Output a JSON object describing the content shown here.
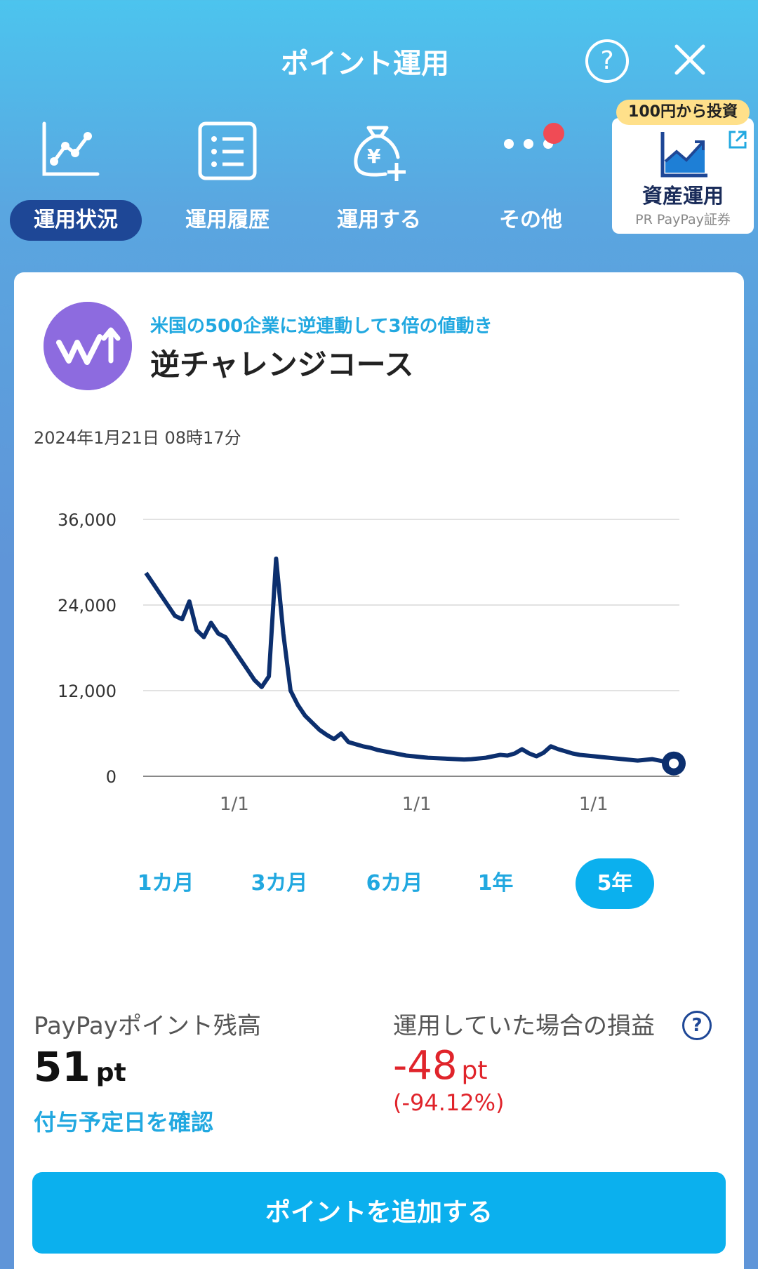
{
  "header": {
    "title": "ポイント運用",
    "help_label": "?"
  },
  "nav": [
    {
      "label": "運用状況",
      "active": true
    },
    {
      "label": "運用履歴"
    },
    {
      "label": "運用する"
    },
    {
      "label": "その他"
    }
  ],
  "promo": {
    "badge": "100円から投資",
    "title": "資産運用",
    "sub": "PR PayPay証券"
  },
  "course": {
    "subtitle": "米国の500企業に逆連動して3倍の値動き",
    "name": "逆チャレンジコース"
  },
  "timestamp": "2024年1月21日 08時17分",
  "chart_data": {
    "type": "line",
    "y_ticks": [
      "36,000",
      "24,000",
      "12,000",
      "0"
    ],
    "x_ticks": [
      "1/1",
      "1/1",
      "1/1"
    ],
    "ylim": [
      0,
      36000
    ],
    "series": [
      {
        "values": [
          28500,
          27000,
          25500,
          24000,
          22500,
          22000,
          24500,
          20500,
          19500,
          21500,
          20000,
          19500,
          18000,
          16500,
          15000,
          13500,
          12500,
          14000,
          30500,
          20000,
          12000,
          10000,
          8500,
          7500,
          6500,
          5800,
          5200,
          6000,
          4800,
          4500,
          4200,
          4000,
          3700,
          3500,
          3300,
          3100,
          2900,
          2800,
          2700,
          2600,
          2550,
          2500,
          2450,
          2400,
          2350,
          2400,
          2500,
          2600,
          2800,
          3000,
          2900,
          3200,
          3800,
          3200,
          2800,
          3300,
          4200,
          3800,
          3500,
          3200,
          3000,
          2900,
          2800,
          2700,
          2600,
          2500,
          2400,
          2300,
          2200,
          2300,
          2400,
          2200,
          2000,
          1800
        ]
      }
    ],
    "line_color": "#0c2f6e"
  },
  "ranges": {
    "items": [
      "1カ月",
      "3カ月",
      "6カ月",
      "1年",
      "5年"
    ],
    "active": "5年"
  },
  "balance": {
    "label": "PayPayポイント残高",
    "value": "51",
    "unit": "pt",
    "link": "付与予定日を確認"
  },
  "pl": {
    "label": "運用していた場合の損益",
    "help": "?",
    "value": "-48",
    "unit": "pt",
    "pct": "(-94.12%)"
  },
  "add_button": "ポイントを追加する",
  "colors": {
    "accent": "#0bb0ee",
    "active_nav": "#1e4796",
    "negative": "#e0242b",
    "course_icon": "#8d6bdf"
  }
}
